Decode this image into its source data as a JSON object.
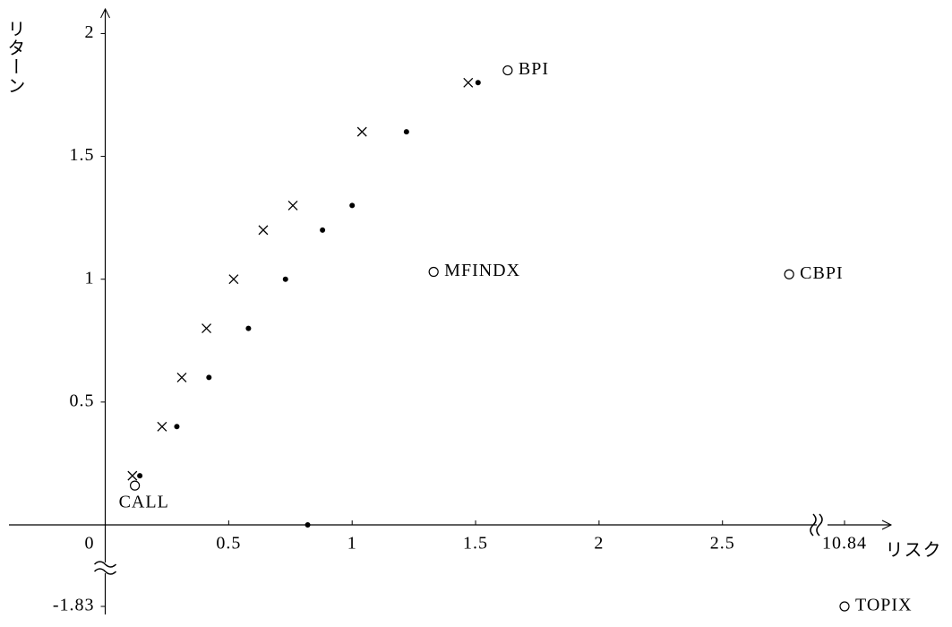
{
  "chart_data": {
    "type": "scatter",
    "xlabel": "リスク",
    "ylabel": "リターン",
    "xlim": [
      -0.39,
      2.9
    ],
    "ylim": [
      0,
      2.1
    ],
    "xticks": [
      0,
      0.5,
      1.0,
      1.5,
      2.0,
      2.5,
      {
        "value": 10.84,
        "label": "10.84"
      }
    ],
    "yticks": [
      0.5,
      1.0,
      1.5,
      2.0,
      {
        "value": -1.83,
        "label": "-1.83"
      }
    ],
    "axis_break": true,
    "grid": false,
    "color": "#000000",
    "series": [
      {
        "marker": "x",
        "x": [
          0.11,
          0.23,
          0.31,
          0.41,
          0.52,
          0.64,
          0.76,
          1.04,
          1.47
        ],
        "values": [
          0.2,
          0.4,
          0.6,
          0.8,
          1.0,
          1.2,
          1.3,
          1.6,
          1.8
        ]
      },
      {
        "marker": "dot",
        "x": [
          0.14,
          0.29,
          0.42,
          0.58,
          0.73,
          0.88,
          1.0,
          1.22,
          1.51,
          0.82
        ],
        "values": [
          0.2,
          0.4,
          0.6,
          0.8,
          1.0,
          1.2,
          1.3,
          1.6,
          1.8,
          0
        ]
      },
      {
        "marker": "circle",
        "x": [
          0.12,
          1.33,
          1.63,
          2.77,
          10.84
        ],
        "values": [
          0.16,
          1.03,
          1.85,
          1.02,
          -1.83
        ],
        "labels": [
          "CALL",
          "MFINDX",
          "BPI",
          "CBPI",
          "TOPIX"
        ]
      }
    ]
  }
}
